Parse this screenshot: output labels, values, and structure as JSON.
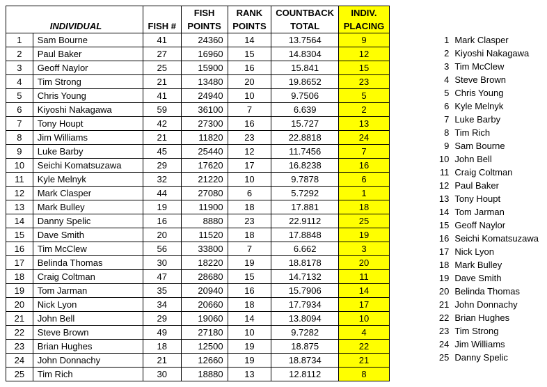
{
  "title": "INDIVIDUAL",
  "headers": {
    "fish_num_top": "",
    "fish_num_bot": "FISH #",
    "fish_pts_top": "FISH",
    "fish_pts_bot": "POINTS",
    "rank_top": "RANK",
    "rank_bot": "POINTS",
    "countback_top": "COUNTBACK",
    "countback_bot": "TOTAL",
    "placing_top": "INDIV.",
    "placing_bot": "PLACING"
  },
  "colors": {
    "highlight": "#ffff00",
    "border": "#000000",
    "background": "#ffffff",
    "text": "#000000"
  },
  "rows": [
    {
      "n": 1,
      "name": "Sam Bourne",
      "fish": 41,
      "pts": 24360,
      "rank": 14,
      "cb": "13.7564",
      "pl": 9
    },
    {
      "n": 2,
      "name": "Paul Baker",
      "fish": 27,
      "pts": 16960,
      "rank": 15,
      "cb": "14.8304",
      "pl": 12
    },
    {
      "n": 3,
      "name": "Geoff Naylor",
      "fish": 25,
      "pts": 15900,
      "rank": 16,
      "cb": "15.841",
      "pl": 15
    },
    {
      "n": 4,
      "name": "Tim Strong",
      "fish": 21,
      "pts": 13480,
      "rank": 20,
      "cb": "19.8652",
      "pl": 23
    },
    {
      "n": 5,
      "name": "Chris Young",
      "fish": 41,
      "pts": 24940,
      "rank": 10,
      "cb": "9.7506",
      "pl": 5
    },
    {
      "n": 6,
      "name": "Kiyoshi Nakagawa",
      "fish": 59,
      "pts": 36100,
      "rank": 7,
      "cb": "6.639",
      "pl": 2
    },
    {
      "n": 7,
      "name": "Tony Houpt",
      "fish": 42,
      "pts": 27300,
      "rank": 16,
      "cb": "15.727",
      "pl": 13
    },
    {
      "n": 8,
      "name": "Jim Williams",
      "fish": 21,
      "pts": 11820,
      "rank": 23,
      "cb": "22.8818",
      "pl": 24
    },
    {
      "n": 9,
      "name": "Luke Barby",
      "fish": 45,
      "pts": 25440,
      "rank": 12,
      "cb": "11.7456",
      "pl": 7
    },
    {
      "n": 10,
      "name": "Seichi Komatsuzawa",
      "fish": 29,
      "pts": 17620,
      "rank": 17,
      "cb": "16.8238",
      "pl": 16
    },
    {
      "n": 11,
      "name": "Kyle Melnyk",
      "fish": 32,
      "pts": 21220,
      "rank": 10,
      "cb": "9.7878",
      "pl": 6
    },
    {
      "n": 12,
      "name": "Mark Clasper",
      "fish": 44,
      "pts": 27080,
      "rank": 6,
      "cb": "5.7292",
      "pl": 1
    },
    {
      "n": 13,
      "name": "Mark Bulley",
      "fish": 19,
      "pts": 11900,
      "rank": 18,
      "cb": "17.881",
      "pl": 18
    },
    {
      "n": 14,
      "name": "Danny Spelic",
      "fish": 16,
      "pts": 8880,
      "rank": 23,
      "cb": "22.9112",
      "pl": 25
    },
    {
      "n": 15,
      "name": "Dave Smith",
      "fish": 20,
      "pts": 11520,
      "rank": 18,
      "cb": "17.8848",
      "pl": 19
    },
    {
      "n": 16,
      "name": "Tim McClew",
      "fish": 56,
      "pts": 33800,
      "rank": 7,
      "cb": "6.662",
      "pl": 3
    },
    {
      "n": 17,
      "name": "Belinda Thomas",
      "fish": 30,
      "pts": 18220,
      "rank": 19,
      "cb": "18.8178",
      "pl": 20
    },
    {
      "n": 18,
      "name": "Craig Coltman",
      "fish": 47,
      "pts": 28680,
      "rank": 15,
      "cb": "14.7132",
      "pl": 11
    },
    {
      "n": 19,
      "name": "Tom Jarman",
      "fish": 35,
      "pts": 20940,
      "rank": 16,
      "cb": "15.7906",
      "pl": 14
    },
    {
      "n": 20,
      "name": "Nick Lyon",
      "fish": 34,
      "pts": 20660,
      "rank": 18,
      "cb": "17.7934",
      "pl": 17
    },
    {
      "n": 21,
      "name": "John Bell",
      "fish": 29,
      "pts": 19060,
      "rank": 14,
      "cb": "13.8094",
      "pl": 10
    },
    {
      "n": 22,
      "name": "Steve Brown",
      "fish": 49,
      "pts": 27180,
      "rank": 10,
      "cb": "9.7282",
      "pl": 4
    },
    {
      "n": 23,
      "name": "Brian Hughes",
      "fish": 18,
      "pts": 12500,
      "rank": 19,
      "cb": "18.875",
      "pl": 22
    },
    {
      "n": 24,
      "name": "John Donnachy",
      "fish": 21,
      "pts": 12660,
      "rank": 19,
      "cb": "18.8734",
      "pl": 21
    },
    {
      "n": 25,
      "name": "Tim Rich",
      "fish": 30,
      "pts": 18880,
      "rank": 13,
      "cb": "12.8112",
      "pl": 8
    }
  ],
  "side_rows": [
    {
      "n": 1,
      "name": "Mark Clasper"
    },
    {
      "n": 2,
      "name": "Kiyoshi Nakagawa"
    },
    {
      "n": 3,
      "name": "Tim McClew"
    },
    {
      "n": 4,
      "name": "Steve Brown"
    },
    {
      "n": 5,
      "name": "Chris Young"
    },
    {
      "n": 6,
      "name": "Kyle Melnyk"
    },
    {
      "n": 7,
      "name": "Luke Barby"
    },
    {
      "n": 8,
      "name": "Tim Rich"
    },
    {
      "n": 9,
      "name": "Sam Bourne"
    },
    {
      "n": 10,
      "name": "John Bell"
    },
    {
      "n": 11,
      "name": "Craig Coltman"
    },
    {
      "n": 12,
      "name": "Paul Baker"
    },
    {
      "n": 13,
      "name": "Tony Houpt"
    },
    {
      "n": 14,
      "name": "Tom Jarman"
    },
    {
      "n": 15,
      "name": "Geoff Naylor"
    },
    {
      "n": 16,
      "name": "Seichi Komatsuzawa"
    },
    {
      "n": 17,
      "name": "Nick Lyon"
    },
    {
      "n": 18,
      "name": "Mark Bulley"
    },
    {
      "n": 19,
      "name": "Dave Smith"
    },
    {
      "n": 20,
      "name": "Belinda Thomas"
    },
    {
      "n": 21,
      "name": "John Donnachy"
    },
    {
      "n": 22,
      "name": "Brian Hughes"
    },
    {
      "n": 23,
      "name": "Tim Strong"
    },
    {
      "n": 24,
      "name": "Jim Williams"
    },
    {
      "n": 25,
      "name": "Danny Spelic"
    }
  ]
}
